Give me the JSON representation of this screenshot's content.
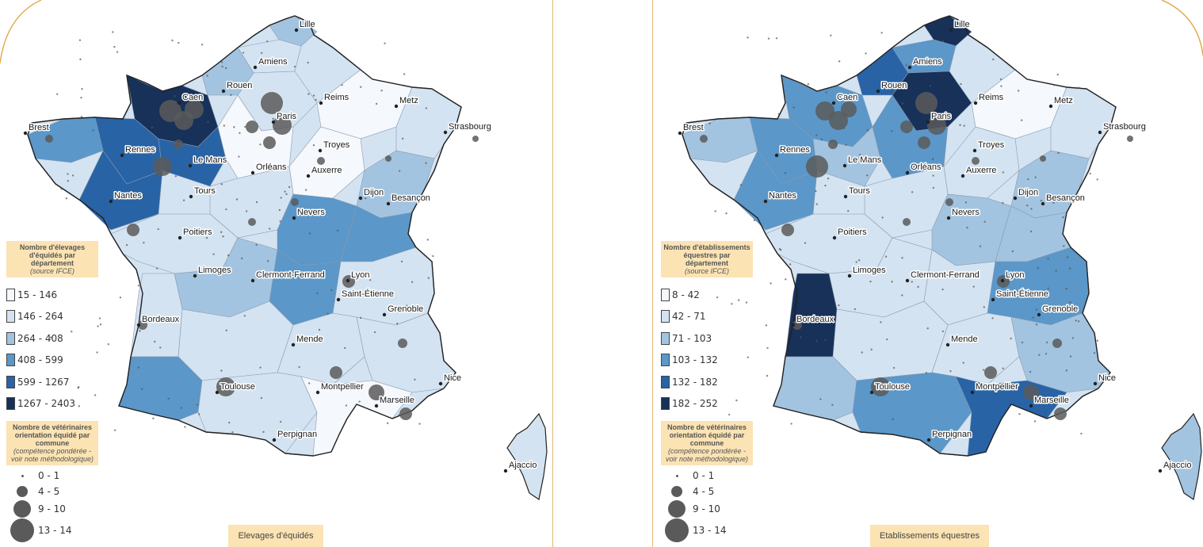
{
  "colors": {
    "accent": "#e2ae52",
    "caption_bg": "#fbe3b4",
    "circle": "#5a5a5a",
    "classes": [
      "#f5f8fc",
      "#d3e3f1",
      "#a3c4e0",
      "#5b97c9",
      "#2863a6",
      "#173159"
    ]
  },
  "panels": [
    {
      "caption": "Elevages d'équidés",
      "legend": {
        "title": "Nombre d'élevages d'équidés par département",
        "source": "(source IFCE)",
        "classes": [
          "15 - 146",
          "146 - 264",
          "264 - 408",
          "408 - 599",
          "599 - 1267",
          "1267 - 2403"
        ]
      },
      "vet_legend": {
        "title": "Nombre de vétérinaires orientation équidé par commune",
        "note": "(compétence pondérée - voir note méthodologique)",
        "sizes": [
          "0 - 1",
          "4 - 5",
          "9 - 10",
          "13 - 14"
        ]
      },
      "cities": [
        "Lille",
        "Amiens",
        "Rouen",
        "Caen",
        "Brest",
        "Paris",
        "Reims",
        "Metz",
        "Strasbourg",
        "Rennes",
        "Le Mans",
        "Orléans",
        "Troyes",
        "Auxerre",
        "Nantes",
        "Tours",
        "Dijon",
        "Besançon",
        "Nevers",
        "Poitiers",
        "Limoges",
        "Clermont-Ferrand",
        "Lyon",
        "Saint-Étienne",
        "Grenoble",
        "Bordeaux",
        "Mende",
        "Nice",
        "Toulouse",
        "Montpellier",
        "Marseille",
        "Perpignan",
        "Ajaccio"
      ]
    },
    {
      "caption": "Etablissements équestres",
      "legend": {
        "title": "Nombre d'établissements équestres par département",
        "source": "(source IFCE)",
        "classes": [
          "8 - 42",
          "42 - 71",
          "71 - 103",
          "103 - 132",
          "132 - 182",
          "182 - 252"
        ]
      },
      "vet_legend": {
        "title": "Nombre de vétérinaires orientation équidé par commune",
        "note": "(compétence pondérée - voir note méthodologique)",
        "sizes": [
          "0 - 1",
          "4 - 5",
          "9 - 10",
          "13 - 14"
        ]
      },
      "cities": [
        "Lille",
        "Amiens",
        "Rouen",
        "Caen",
        "Brest",
        "Paris",
        "Reims",
        "Metz",
        "Strasbourg",
        "Rennes",
        "Le Mans",
        "Orléans",
        "Troyes",
        "Auxerre",
        "Nantes",
        "Tours",
        "Dijon",
        "Besançon",
        "Nevers",
        "Poitiers",
        "Limoges",
        "Clermont-Ferrand",
        "Lyon",
        "Saint-Étienne",
        "Grenoble",
        "Bordeaux",
        "Mende",
        "Nice",
        "Toulouse",
        "Montpellier",
        "Marseille",
        "Perpignan",
        "Ajaccio"
      ]
    }
  ]
}
